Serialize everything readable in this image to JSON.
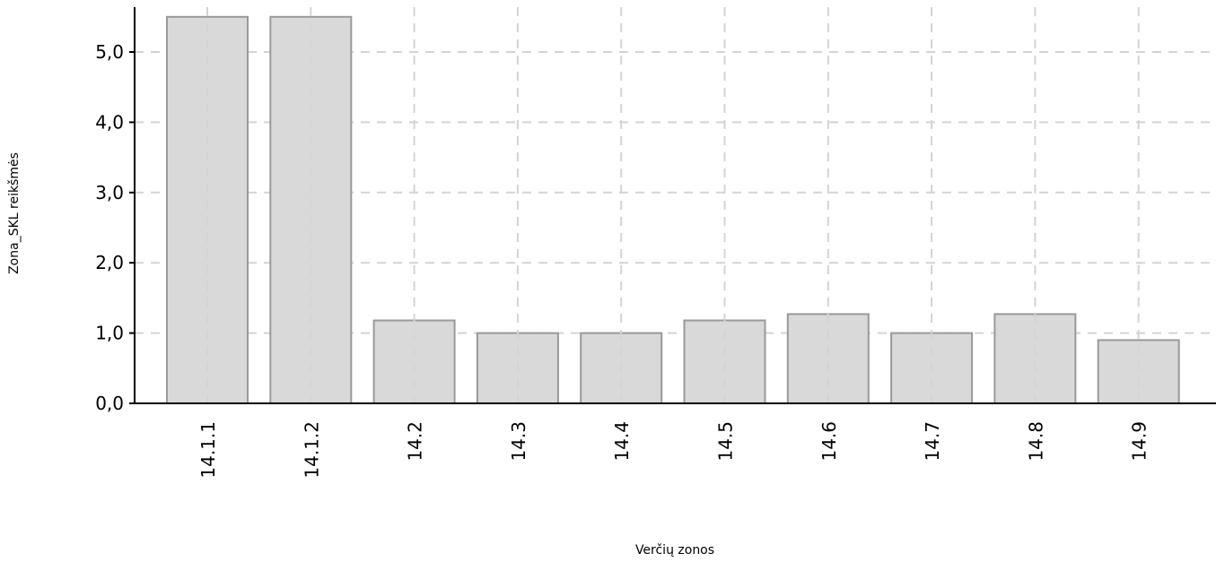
{
  "chart_data": {
    "type": "bar",
    "title": "",
    "xlabel": "Verčių zonos",
    "ylabel": "Zona_SKL reikšmės",
    "categories": [
      "14.1.1",
      "14.1.2",
      "14.2",
      "14.3",
      "14.4",
      "14.5",
      "14.6",
      "14.7",
      "14.8",
      "14.9"
    ],
    "series": [
      {
        "values": [
          5.5,
          5.5,
          1.18,
          1.0,
          1.0,
          1.18,
          1.27,
          1.0,
          1.27,
          0.9
        ]
      }
    ],
    "yticks": [
      "0,0",
      "1,0",
      "2,0",
      "3,0",
      "4,0",
      "5,0"
    ],
    "ylim": [
      0,
      5.5
    ],
    "grid": true,
    "legend": "none",
    "colors": {
      "bar_fill": "#d9d9d9",
      "bar_stroke": "#999999",
      "grid": "#d4d4d4",
      "axis": "#000000"
    }
  }
}
